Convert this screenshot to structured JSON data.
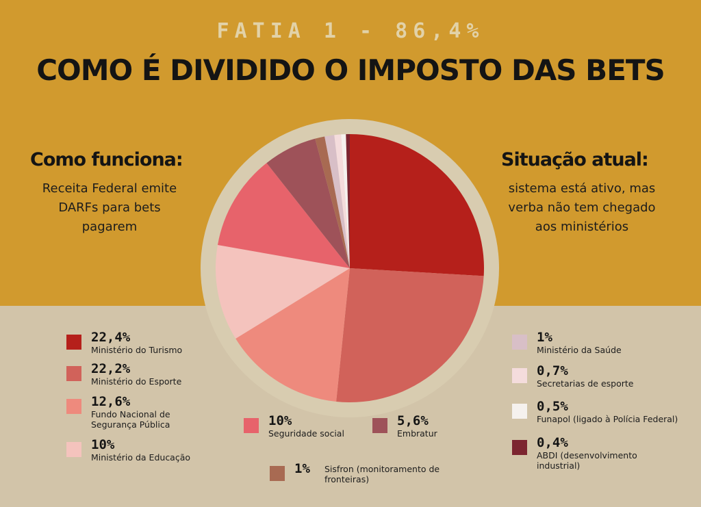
{
  "header": {
    "kicker": "FATIA 1 - 86,4%",
    "title": "COMO É DIVIDIDO O IMPOSTO DAS BETS"
  },
  "left_panel": {
    "heading": "Como funciona:",
    "lines": [
      "Receita Federal emite",
      "DARFs para bets",
      "pagarem"
    ]
  },
  "right_panel": {
    "heading": "Situação atual:",
    "lines": [
      "sistema está ativo, mas",
      "verba não tem chegado",
      "aos ministérios"
    ]
  },
  "colors": {
    "top_band": "#d19a2e",
    "bottom_band": "#d2c4a9",
    "pie_ring": "#d8ccb0"
  },
  "chart_data": {
    "type": "pie",
    "title": "COMO É DIVIDIDO O IMPOSTO DAS BETS",
    "subtitle": "FATIA 1 - 86,4%",
    "unit": "%",
    "slices": [
      {
        "label": "Ministério do Turismo",
        "value": 22.4,
        "display": "22,4%",
        "color": "#b5201b"
      },
      {
        "label": "Ministério do Esporte",
        "value": 22.2,
        "display": "22,2%",
        "color": "#d1625a"
      },
      {
        "label": "Fundo Nacional de Segurança Pública",
        "value": 12.6,
        "display": "12,6%",
        "color": "#ee8a7d"
      },
      {
        "label": "Ministério da Educação",
        "value": 10,
        "display": "10%",
        "color": "#f4c3bd"
      },
      {
        "label": "Seguridade social",
        "value": 10,
        "display": "10%",
        "color": "#e7636b"
      },
      {
        "label": "Embratur",
        "value": 5.6,
        "display": "5,6%",
        "color": "#9e5259"
      },
      {
        "label": "Sisfron (monitoramento de fronteiras)",
        "value": 1,
        "display": "1%",
        "color": "#a86a52"
      },
      {
        "label": "Ministério da Saúde",
        "value": 1,
        "display": "1%",
        "color": "#d8bfc7"
      },
      {
        "label": "Secretarias de esporte",
        "value": 0.7,
        "display": "0,7%",
        "color": "#f4dcdc"
      },
      {
        "label": "Funapol (ligado à Polícia Federal)",
        "value": 0.5,
        "display": "0,5%",
        "color": "#f5f1ee"
      },
      {
        "label": "ABDI (desenvolvimento industrial)",
        "value": 0.4,
        "display": "0,4%",
        "color": "#7c2530"
      }
    ]
  }
}
